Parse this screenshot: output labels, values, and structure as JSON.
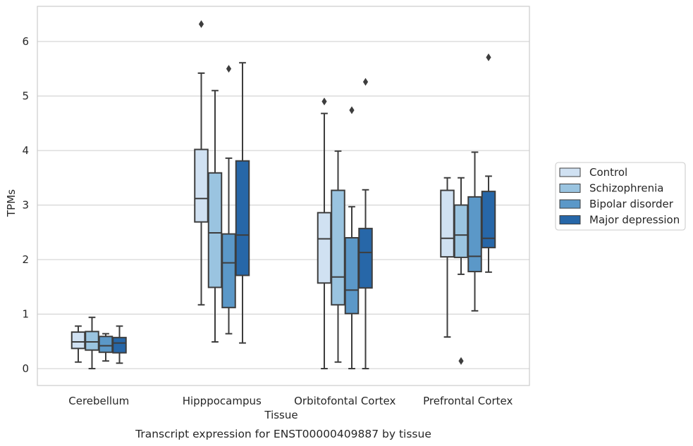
{
  "chart_data": {
    "type": "boxplot",
    "caption": "Transcript expression for ENST00000409887 by tissue",
    "xlabel": "Tissue",
    "ylabel": "TPMs",
    "ylim": [
      -0.3,
      6.65
    ],
    "yticks": [
      0,
      1,
      2,
      3,
      4,
      5,
      6
    ],
    "grid": true,
    "legend_position": "right-outside",
    "categories": [
      "Cerebellum",
      "Hipppocampus",
      "Orbitofontal Cortex",
      "Prefrontal Cortex"
    ],
    "series": [
      {
        "name": "Control",
        "color": "#d0e1f2",
        "boxes": [
          {
            "whislo": 0.12,
            "q1": 0.37,
            "med": 0.49,
            "q3": 0.67,
            "whishi": 0.78,
            "fliers": []
          },
          {
            "whislo": 1.17,
            "q1": 2.69,
            "med": 3.12,
            "q3": 4.02,
            "whishi": 5.42,
            "fliers": [
              6.32
            ]
          },
          {
            "whislo": 0.0,
            "q1": 1.57,
            "med": 2.38,
            "q3": 2.86,
            "whishi": 4.68,
            "fliers": [
              4.9
            ]
          },
          {
            "whislo": 0.58,
            "q1": 2.05,
            "med": 2.39,
            "q3": 3.27,
            "whishi": 3.5,
            "fliers": []
          }
        ]
      },
      {
        "name": "Schizophrenia",
        "color": "#9ac4e0",
        "boxes": [
          {
            "whislo": 0.0,
            "q1": 0.34,
            "med": 0.49,
            "q3": 0.68,
            "whishi": 0.94,
            "fliers": []
          },
          {
            "whislo": 0.49,
            "q1": 1.49,
            "med": 2.49,
            "q3": 3.59,
            "whishi": 5.1,
            "fliers": []
          },
          {
            "whislo": 0.12,
            "q1": 1.17,
            "med": 1.68,
            "q3": 3.27,
            "whishi": 3.99,
            "fliers": []
          },
          {
            "whislo": 1.73,
            "q1": 2.04,
            "med": 2.45,
            "q3": 3.0,
            "whishi": 3.5,
            "fliers": [
              0.14
            ]
          }
        ]
      },
      {
        "name": "Bipolar disorder",
        "color": "#5b98c8",
        "boxes": [
          {
            "whislo": 0.14,
            "q1": 0.3,
            "med": 0.42,
            "q3": 0.59,
            "whishi": 0.64,
            "fliers": []
          },
          {
            "whislo": 0.64,
            "q1": 1.12,
            "med": 1.94,
            "q3": 2.47,
            "whishi": 3.86,
            "fliers": [
              5.5
            ]
          },
          {
            "whislo": 0.0,
            "q1": 1.01,
            "med": 1.44,
            "q3": 2.4,
            "whishi": 2.97,
            "fliers": [
              4.74
            ]
          },
          {
            "whislo": 1.06,
            "q1": 1.78,
            "med": 2.06,
            "q3": 3.15,
            "whishi": 3.97,
            "fliers": []
          }
        ]
      },
      {
        "name": "Major depression",
        "color": "#2767a8",
        "boxes": [
          {
            "whislo": 0.1,
            "q1": 0.29,
            "med": 0.47,
            "q3": 0.57,
            "whishi": 0.78,
            "fliers": []
          },
          {
            "whislo": 0.47,
            "q1": 1.71,
            "med": 2.45,
            "q3": 3.81,
            "whishi": 5.61,
            "fliers": []
          },
          {
            "whislo": 0.0,
            "q1": 1.48,
            "med": 2.13,
            "q3": 2.57,
            "whishi": 3.28,
            "fliers": [
              5.26
            ]
          },
          {
            "whislo": 1.77,
            "q1": 2.22,
            "med": 2.39,
            "q3": 3.25,
            "whishi": 3.53,
            "fliers": [
              5.71
            ]
          }
        ]
      }
    ]
  }
}
